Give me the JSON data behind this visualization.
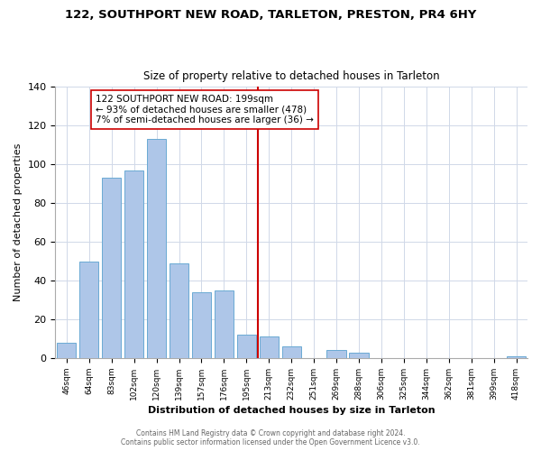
{
  "title": "122, SOUTHPORT NEW ROAD, TARLETON, PRESTON, PR4 6HY",
  "subtitle": "Size of property relative to detached houses in Tarleton",
  "xlabel": "Distribution of detached houses by size in Tarleton",
  "ylabel": "Number of detached properties",
  "footer_lines": [
    "Contains HM Land Registry data © Crown copyright and database right 2024.",
    "Contains public sector information licensed under the Open Government Licence v3.0."
  ],
  "bin_labels": [
    "46sqm",
    "64sqm",
    "83sqm",
    "102sqm",
    "120sqm",
    "139sqm",
    "157sqm",
    "176sqm",
    "195sqm",
    "213sqm",
    "232sqm",
    "251sqm",
    "269sqm",
    "288sqm",
    "306sqm",
    "325sqm",
    "344sqm",
    "362sqm",
    "381sqm",
    "399sqm",
    "418sqm"
  ],
  "bar_values": [
    8,
    50,
    93,
    97,
    113,
    49,
    34,
    35,
    12,
    11,
    6,
    0,
    4,
    3,
    0,
    0,
    0,
    0,
    0,
    0,
    1
  ],
  "bar_color": "#aec6e8",
  "bar_edgecolor": "#6aaad4",
  "reference_line_x_label": "195sqm",
  "reference_line_color": "#cc0000",
  "annotation_text": "122 SOUTHPORT NEW ROAD: 199sqm\n← 93% of detached houses are smaller (478)\n7% of semi-detached houses are larger (36) →",
  "annotation_box_edgecolor": "#cc0000",
  "annotation_box_facecolor": "#ffffff",
  "ylim": [
    0,
    140
  ],
  "yticks": [
    0,
    20,
    40,
    60,
    80,
    100,
    120,
    140
  ],
  "background_color": "#ffffff",
  "grid_color": "#d0d8e8"
}
